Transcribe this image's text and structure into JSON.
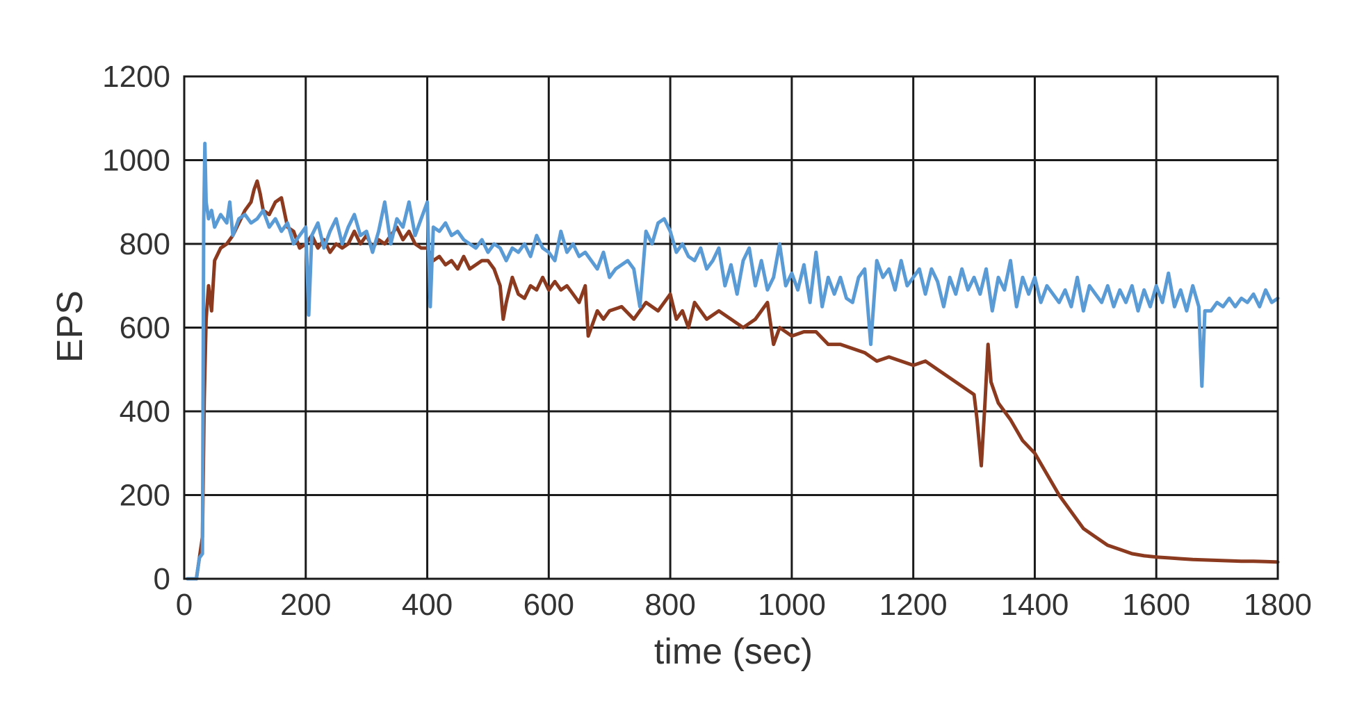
{
  "chart_data": {
    "type": "line",
    "title": "",
    "xlabel": "time (sec)",
    "ylabel": "EPS",
    "xlim": [
      0,
      1800
    ],
    "ylim": [
      0,
      1200
    ],
    "x_ticks": [
      0,
      200,
      400,
      600,
      800,
      1000,
      1200,
      1400,
      1600,
      1800
    ],
    "y_ticks": [
      0,
      200,
      400,
      600,
      800,
      1000,
      1200
    ],
    "grid": true,
    "legend": "none",
    "series": [
      {
        "color": "#8b3a1f",
        "points": [
          [
            10,
            0
          ],
          [
            20,
            0
          ],
          [
            25,
            50
          ],
          [
            30,
            100
          ],
          [
            33,
            430
          ],
          [
            36,
            620
          ],
          [
            40,
            700
          ],
          [
            45,
            640
          ],
          [
            50,
            760
          ],
          [
            60,
            790
          ],
          [
            70,
            800
          ],
          [
            80,
            820
          ],
          [
            90,
            850
          ],
          [
            100,
            880
          ],
          [
            110,
            900
          ],
          [
            115,
            930
          ],
          [
            120,
            950
          ],
          [
            125,
            920
          ],
          [
            130,
            880
          ],
          [
            140,
            870
          ],
          [
            150,
            900
          ],
          [
            160,
            910
          ],
          [
            170,
            840
          ],
          [
            180,
            830
          ],
          [
            190,
            790
          ],
          [
            200,
            800
          ],
          [
            210,
            820
          ],
          [
            220,
            790
          ],
          [
            230,
            810
          ],
          [
            240,
            780
          ],
          [
            250,
            800
          ],
          [
            260,
            790
          ],
          [
            270,
            800
          ],
          [
            280,
            830
          ],
          [
            290,
            800
          ],
          [
            300,
            820
          ],
          [
            310,
            790
          ],
          [
            320,
            810
          ],
          [
            330,
            800
          ],
          [
            340,
            820
          ],
          [
            350,
            840
          ],
          [
            360,
            810
          ],
          [
            370,
            830
          ],
          [
            380,
            800
          ],
          [
            390,
            790
          ],
          [
            400,
            790
          ],
          [
            410,
            760
          ],
          [
            420,
            770
          ],
          [
            430,
            750
          ],
          [
            440,
            760
          ],
          [
            450,
            740
          ],
          [
            460,
            770
          ],
          [
            470,
            740
          ],
          [
            480,
            750
          ],
          [
            490,
            760
          ],
          [
            500,
            760
          ],
          [
            510,
            740
          ],
          [
            520,
            700
          ],
          [
            525,
            620
          ],
          [
            530,
            660
          ],
          [
            540,
            720
          ],
          [
            550,
            680
          ],
          [
            560,
            670
          ],
          [
            570,
            700
          ],
          [
            580,
            690
          ],
          [
            590,
            720
          ],
          [
            600,
            690
          ],
          [
            610,
            710
          ],
          [
            620,
            690
          ],
          [
            630,
            700
          ],
          [
            640,
            680
          ],
          [
            650,
            660
          ],
          [
            660,
            700
          ],
          [
            665,
            580
          ],
          [
            670,
            600
          ],
          [
            680,
            640
          ],
          [
            690,
            620
          ],
          [
            700,
            640
          ],
          [
            720,
            650
          ],
          [
            740,
            620
          ],
          [
            760,
            660
          ],
          [
            780,
            640
          ],
          [
            800,
            680
          ],
          [
            810,
            620
          ],
          [
            820,
            640
          ],
          [
            830,
            600
          ],
          [
            840,
            660
          ],
          [
            860,
            620
          ],
          [
            880,
            640
          ],
          [
            900,
            620
          ],
          [
            920,
            600
          ],
          [
            940,
            620
          ],
          [
            960,
            660
          ],
          [
            970,
            560
          ],
          [
            980,
            600
          ],
          [
            1000,
            580
          ],
          [
            1020,
            590
          ],
          [
            1040,
            590
          ],
          [
            1060,
            560
          ],
          [
            1080,
            560
          ],
          [
            1100,
            550
          ],
          [
            1120,
            540
          ],
          [
            1140,
            520
          ],
          [
            1160,
            530
          ],
          [
            1180,
            520
          ],
          [
            1200,
            510
          ],
          [
            1220,
            520
          ],
          [
            1240,
            500
          ],
          [
            1260,
            480
          ],
          [
            1280,
            460
          ],
          [
            1300,
            440
          ],
          [
            1305,
            380
          ],
          [
            1312,
            270
          ],
          [
            1318,
            420
          ],
          [
            1323,
            560
          ],
          [
            1328,
            470
          ],
          [
            1340,
            420
          ],
          [
            1360,
            380
          ],
          [
            1380,
            330
          ],
          [
            1400,
            300
          ],
          [
            1420,
            250
          ],
          [
            1440,
            200
          ],
          [
            1460,
            160
          ],
          [
            1480,
            120
          ],
          [
            1500,
            100
          ],
          [
            1520,
            80
          ],
          [
            1540,
            70
          ],
          [
            1560,
            60
          ],
          [
            1580,
            55
          ],
          [
            1600,
            52
          ],
          [
            1620,
            50
          ],
          [
            1640,
            48
          ],
          [
            1660,
            46
          ],
          [
            1680,
            45
          ],
          [
            1700,
            44
          ],
          [
            1720,
            43
          ],
          [
            1740,
            42
          ],
          [
            1760,
            42
          ],
          [
            1780,
            41
          ],
          [
            1800,
            40
          ]
        ]
      },
      {
        "color": "#5b9bd5",
        "points": [
          [
            5,
            0
          ],
          [
            20,
            0
          ],
          [
            25,
            50
          ],
          [
            30,
            60
          ],
          [
            32,
            850
          ],
          [
            34,
            1040
          ],
          [
            36,
            900
          ],
          [
            40,
            860
          ],
          [
            45,
            880
          ],
          [
            50,
            840
          ],
          [
            60,
            870
          ],
          [
            70,
            850
          ],
          [
            75,
            900
          ],
          [
            80,
            820
          ],
          [
            90,
            860
          ],
          [
            100,
            870
          ],
          [
            110,
            850
          ],
          [
            120,
            860
          ],
          [
            130,
            880
          ],
          [
            140,
            840
          ],
          [
            150,
            860
          ],
          [
            160,
            830
          ],
          [
            170,
            850
          ],
          [
            180,
            800
          ],
          [
            190,
            820
          ],
          [
            200,
            840
          ],
          [
            205,
            630
          ],
          [
            210,
            820
          ],
          [
            220,
            850
          ],
          [
            230,
            790
          ],
          [
            240,
            830
          ],
          [
            250,
            860
          ],
          [
            260,
            800
          ],
          [
            270,
            840
          ],
          [
            280,
            870
          ],
          [
            290,
            820
          ],
          [
            300,
            830
          ],
          [
            310,
            780
          ],
          [
            320,
            830
          ],
          [
            330,
            900
          ],
          [
            340,
            800
          ],
          [
            350,
            860
          ],
          [
            360,
            840
          ],
          [
            370,
            900
          ],
          [
            380,
            820
          ],
          [
            390,
            860
          ],
          [
            400,
            900
          ],
          [
            405,
            650
          ],
          [
            410,
            840
          ],
          [
            420,
            830
          ],
          [
            430,
            850
          ],
          [
            440,
            820
          ],
          [
            450,
            830
          ],
          [
            460,
            810
          ],
          [
            470,
            800
          ],
          [
            480,
            790
          ],
          [
            490,
            810
          ],
          [
            500,
            780
          ],
          [
            510,
            800
          ],
          [
            520,
            790
          ],
          [
            530,
            760
          ],
          [
            540,
            790
          ],
          [
            550,
            780
          ],
          [
            560,
            800
          ],
          [
            570,
            770
          ],
          [
            580,
            820
          ],
          [
            590,
            790
          ],
          [
            600,
            780
          ],
          [
            610,
            760
          ],
          [
            620,
            830
          ],
          [
            630,
            780
          ],
          [
            640,
            800
          ],
          [
            650,
            770
          ],
          [
            660,
            780
          ],
          [
            670,
            760
          ],
          [
            680,
            740
          ],
          [
            690,
            780
          ],
          [
            700,
            720
          ],
          [
            710,
            740
          ],
          [
            720,
            750
          ],
          [
            730,
            760
          ],
          [
            740,
            740
          ],
          [
            750,
            650
          ],
          [
            760,
            830
          ],
          [
            770,
            800
          ],
          [
            780,
            850
          ],
          [
            790,
            860
          ],
          [
            800,
            830
          ],
          [
            810,
            780
          ],
          [
            820,
            800
          ],
          [
            830,
            770
          ],
          [
            840,
            760
          ],
          [
            850,
            790
          ],
          [
            860,
            740
          ],
          [
            870,
            760
          ],
          [
            880,
            790
          ],
          [
            890,
            700
          ],
          [
            900,
            750
          ],
          [
            910,
            680
          ],
          [
            920,
            760
          ],
          [
            930,
            790
          ],
          [
            940,
            700
          ],
          [
            950,
            760
          ],
          [
            960,
            690
          ],
          [
            970,
            720
          ],
          [
            980,
            800
          ],
          [
            990,
            700
          ],
          [
            1000,
            730
          ],
          [
            1010,
            690
          ],
          [
            1020,
            750
          ],
          [
            1030,
            660
          ],
          [
            1040,
            780
          ],
          [
            1050,
            650
          ],
          [
            1060,
            720
          ],
          [
            1070,
            680
          ],
          [
            1080,
            720
          ],
          [
            1090,
            670
          ],
          [
            1100,
            660
          ],
          [
            1110,
            720
          ],
          [
            1120,
            740
          ],
          [
            1130,
            560
          ],
          [
            1140,
            760
          ],
          [
            1150,
            720
          ],
          [
            1160,
            740
          ],
          [
            1170,
            690
          ],
          [
            1180,
            760
          ],
          [
            1190,
            700
          ],
          [
            1200,
            720
          ],
          [
            1210,
            740
          ],
          [
            1220,
            680
          ],
          [
            1230,
            740
          ],
          [
            1240,
            710
          ],
          [
            1250,
            650
          ],
          [
            1260,
            720
          ],
          [
            1270,
            680
          ],
          [
            1280,
            740
          ],
          [
            1290,
            690
          ],
          [
            1300,
            720
          ],
          [
            1310,
            680
          ],
          [
            1320,
            740
          ],
          [
            1330,
            640
          ],
          [
            1340,
            720
          ],
          [
            1350,
            690
          ],
          [
            1360,
            760
          ],
          [
            1370,
            650
          ],
          [
            1380,
            720
          ],
          [
            1390,
            680
          ],
          [
            1400,
            720
          ],
          [
            1410,
            660
          ],
          [
            1420,
            700
          ],
          [
            1430,
            680
          ],
          [
            1440,
            660
          ],
          [
            1450,
            690
          ],
          [
            1460,
            650
          ],
          [
            1470,
            720
          ],
          [
            1480,
            640
          ],
          [
            1490,
            700
          ],
          [
            1500,
            680
          ],
          [
            1510,
            660
          ],
          [
            1520,
            700
          ],
          [
            1530,
            650
          ],
          [
            1540,
            690
          ],
          [
            1550,
            660
          ],
          [
            1560,
            700
          ],
          [
            1570,
            640
          ],
          [
            1580,
            690
          ],
          [
            1590,
            650
          ],
          [
            1600,
            700
          ],
          [
            1610,
            660
          ],
          [
            1620,
            730
          ],
          [
            1630,
            650
          ],
          [
            1640,
            690
          ],
          [
            1650,
            640
          ],
          [
            1660,
            700
          ],
          [
            1670,
            650
          ],
          [
            1675,
            460
          ],
          [
            1680,
            640
          ],
          [
            1690,
            640
          ],
          [
            1700,
            660
          ],
          [
            1710,
            650
          ],
          [
            1720,
            670
          ],
          [
            1730,
            650
          ],
          [
            1740,
            670
          ],
          [
            1750,
            660
          ],
          [
            1760,
            680
          ],
          [
            1770,
            650
          ],
          [
            1780,
            690
          ],
          [
            1790,
            660
          ],
          [
            1800,
            670
          ]
        ]
      }
    ]
  }
}
